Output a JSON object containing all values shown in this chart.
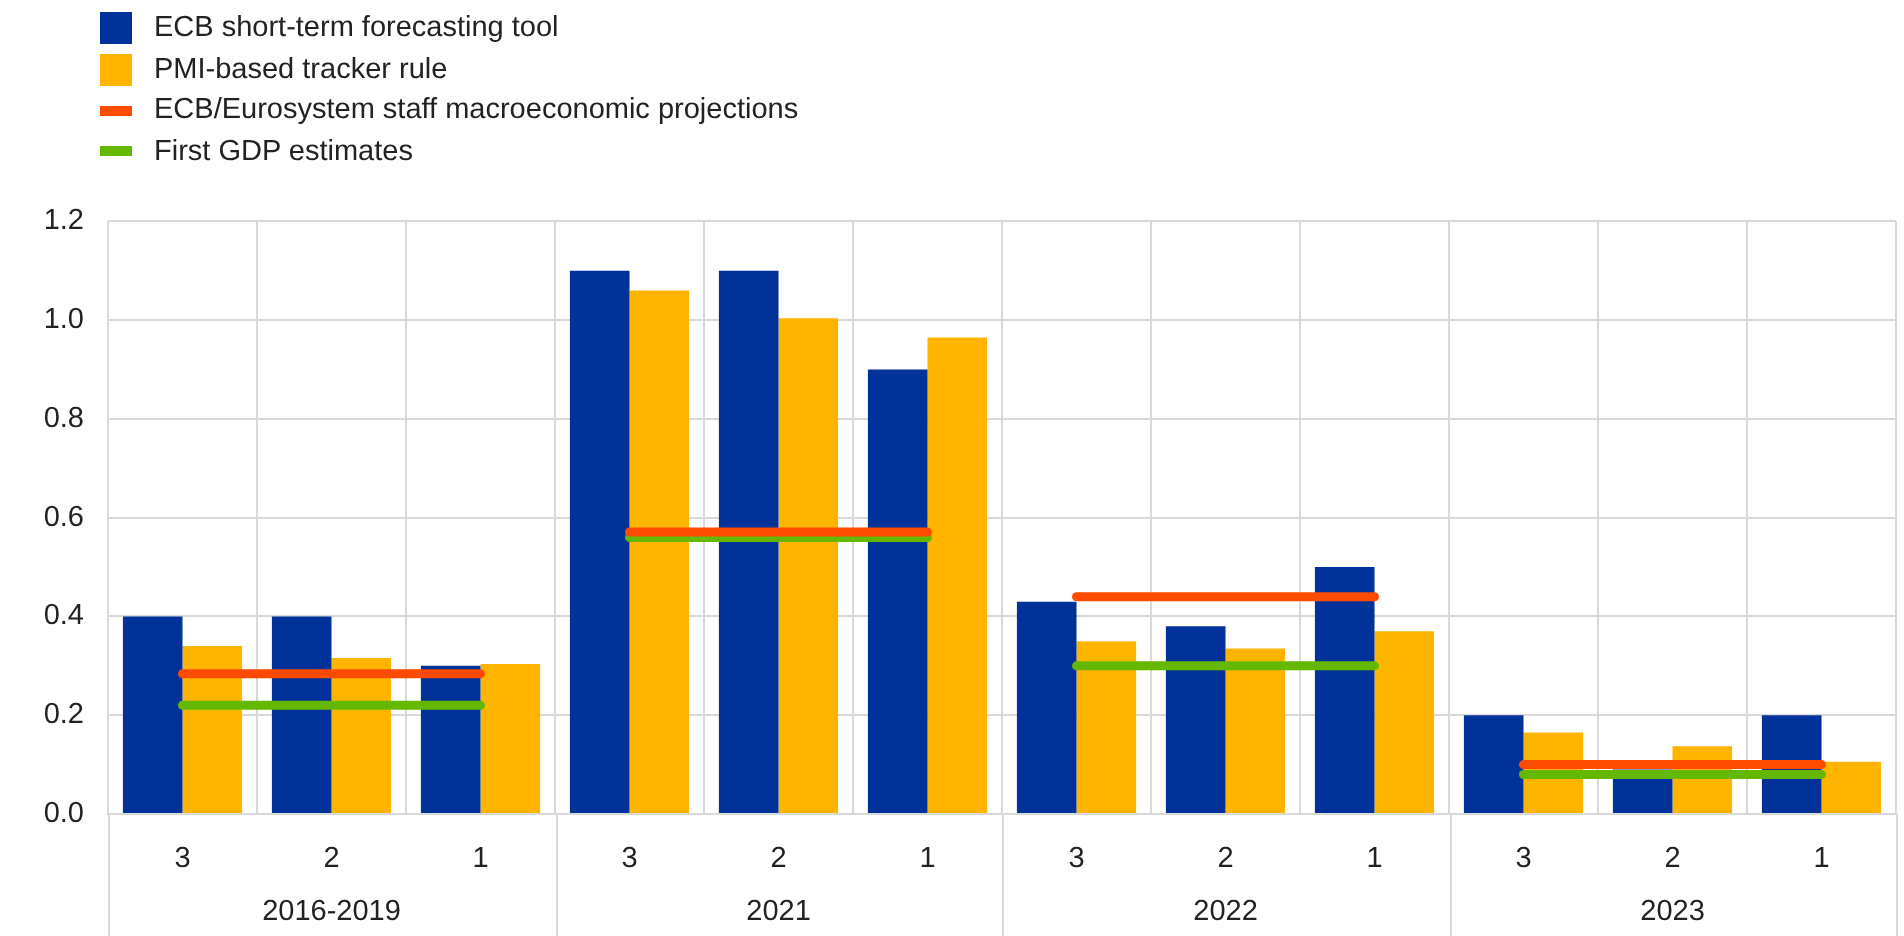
{
  "chart_data": {
    "type": "bar",
    "categories": [
      "3",
      "2",
      "1",
      "3",
      "2",
      "1",
      "3",
      "2",
      "1",
      "3",
      "2",
      "1"
    ],
    "annotations": [
      "2016-2019",
      "2021",
      "2022",
      "2023"
    ],
    "series": [
      {
        "name": "ECB short-term forecasting tool",
        "color": "#003299",
        "values": [
          0.4,
          0.4,
          0.3,
          1.1,
          1.1,
          0.9,
          0.43,
          0.38,
          0.5,
          0.2,
          0.09,
          0.2
        ]
      },
      {
        "name": "PMI-based tracker rule",
        "color": "#ffb400",
        "values": [
          0.34,
          0.316,
          0.304,
          1.06,
          1.004,
          0.965,
          0.35,
          0.335,
          0.37,
          0.165,
          0.137,
          0.106
        ]
      },
      {
        "name": "ECB/Eurosystem staff macroeconomic projections",
        "type": "line",
        "color": "#ff4b00",
        "values": [
          0.284,
          0.284,
          0.284,
          0.571,
          0.571,
          0.571,
          0.44,
          0.44,
          0.44,
          0.1,
          0.1,
          0.1
        ]
      },
      {
        "name": "First GDP estimates",
        "type": "line",
        "color": "#65b800",
        "values": [
          0.22,
          0.22,
          0.22,
          0.56,
          0.56,
          0.56,
          0.3,
          0.3,
          0.3,
          0.08,
          0.08,
          0.08
        ]
      }
    ],
    "ylim": [
      0,
      1.2
    ],
    "yticks": [
      {
        "value": 0,
        "label": "0.0"
      },
      {
        "value": 0.2,
        "label": "0.2"
      },
      {
        "value": 0.4,
        "label": "0.4"
      },
      {
        "value": 0.6,
        "label": "0.6"
      },
      {
        "value": 0.8,
        "label": "0.8"
      },
      {
        "value": 1,
        "label": "1.0"
      },
      {
        "value": 1.2,
        "label": "1.2"
      }
    ],
    "grid": true,
    "legend": "top left"
  }
}
